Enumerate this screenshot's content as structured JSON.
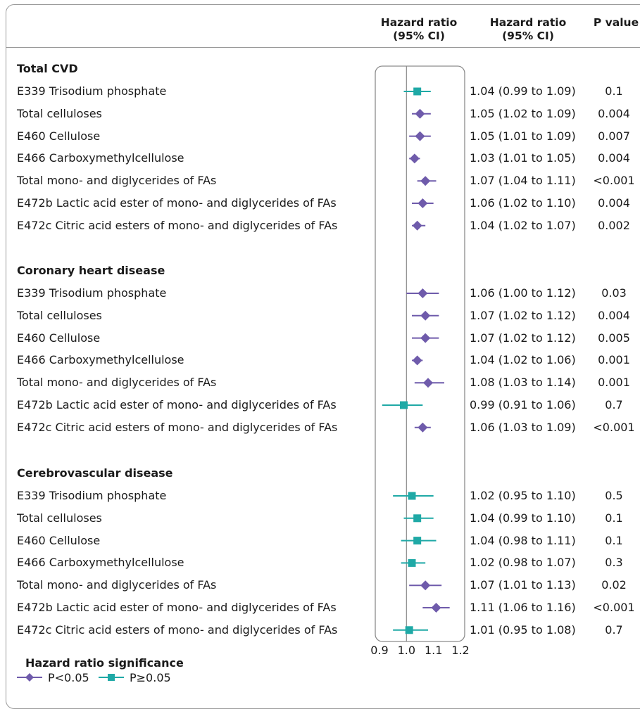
{
  "headers": {
    "plot": [
      "Hazard ratio",
      "(95% CI)"
    ],
    "hr": [
      "Hazard ratio",
      "(95% CI)"
    ],
    "p": "P value"
  },
  "colors": {
    "significant": "#6f5bab",
    "nonsignificant": "#1fa9a6",
    "axis": "#8c8c8c"
  },
  "sections": [
    {
      "title": "Total CVD",
      "rows": [
        {
          "label": "E339 Trisodium phosphate",
          "hr_text": "1.04 (0.99 to 1.09)",
          "p": "0.1"
        },
        {
          "label": "Total celluloses",
          "hr_text": "1.05 (1.02 to 1.09)",
          "p": "0.004"
        },
        {
          "label": "E460 Cellulose",
          "hr_text": "1.05 (1.01 to 1.09)",
          "p": "0.007"
        },
        {
          "label": "E466 Carboxymethylcellulose",
          "hr_text": "1.03 (1.01 to 1.05)",
          "p": "0.004"
        },
        {
          "label": "Total mono- and diglycerides of FAs",
          "hr_text": "1.07 (1.04 to 1.11)",
          "p": "<0.001"
        },
        {
          "label": "E472b Lactic acid ester of mono- and diglycerides of FAs",
          "hr_text": "1.06 (1.02 to 1.10)",
          "p": "0.004"
        },
        {
          "label": "E472c Citric acid esters of mono- and diglycerides of FAs",
          "hr_text": "1.04 (1.02 to 1.07)",
          "p": "0.002"
        }
      ]
    },
    {
      "title": "Coronary heart disease",
      "rows": [
        {
          "label": "E339 Trisodium phosphate",
          "hr_text": "1.06 (1.00 to 1.12)",
          "p": "0.03"
        },
        {
          "label": "Total celluloses",
          "hr_text": "1.07 (1.02 to 1.12)",
          "p": "0.004"
        },
        {
          "label": "E460 Cellulose",
          "hr_text": "1.07 (1.02 to 1.12)",
          "p": "0.005"
        },
        {
          "label": "E466 Carboxymethylcellulose",
          "hr_text": "1.04 (1.02 to 1.06)",
          "p": "0.001"
        },
        {
          "label": "Total mono- and diglycerides of FAs",
          "hr_text": "1.08 (1.03 to 1.14)",
          "p": "0.001"
        },
        {
          "label": "E472b Lactic acid ester of mono- and diglycerides of FAs",
          "hr_text": "0.99 (0.91 to 1.06)",
          "p": "0.7"
        },
        {
          "label": "E472c Citric acid esters of mono- and diglycerides of FAs",
          "hr_text": "1.06 (1.03 to 1.09)",
          "p": "<0.001"
        }
      ]
    },
    {
      "title": "Cerebrovascular disease",
      "rows": [
        {
          "label": "E339 Trisodium phosphate",
          "hr_text": "1.02 (0.95 to 1.10)",
          "p": "0.5"
        },
        {
          "label": "Total celluloses",
          "hr_text": "1.04 (0.99 to 1.10)",
          "p": "0.1"
        },
        {
          "label": "E460 Cellulose",
          "hr_text": "1.04 (0.98 to 1.11)",
          "p": "0.1"
        },
        {
          "label": "E466 Carboxymethylcellulose",
          "hr_text": "1.02 (0.98 to 1.07)",
          "p": "0.3"
        },
        {
          "label": "Total mono- and diglycerides of FAs",
          "hr_text": "1.07 (1.01 to 1.13)",
          "p": "0.02"
        },
        {
          "label": "E472b Lactic acid ester of mono- and diglycerides of FAs",
          "hr_text": "1.11 (1.06 to 1.16)",
          "p": "<0.001"
        },
        {
          "label": "E472c Citric acid esters of mono- and diglycerides of FAs",
          "hr_text": "1.01 (0.95 to 1.08)",
          "p": "0.7"
        }
      ]
    }
  ],
  "legend": {
    "title": "Hazard ratio significance",
    "significant_label": "P<0.05",
    "nonsignificant_label": "P≥0.05"
  },
  "chart_data": {
    "type": "forest",
    "x_ticks": [
      "0.9",
      "1.0",
      "1.1",
      "1.2"
    ],
    "xlim": [
      0.9,
      1.2
    ],
    "reference_line": 1.0,
    "groups": [
      {
        "name": "Total CVD",
        "points": [
          {
            "hr": 1.04,
            "lo": 0.99,
            "hi": 1.09,
            "significant": false
          },
          {
            "hr": 1.05,
            "lo": 1.02,
            "hi": 1.09,
            "significant": true
          },
          {
            "hr": 1.05,
            "lo": 1.01,
            "hi": 1.09,
            "significant": true
          },
          {
            "hr": 1.03,
            "lo": 1.01,
            "hi": 1.05,
            "significant": true
          },
          {
            "hr": 1.07,
            "lo": 1.04,
            "hi": 1.11,
            "significant": true
          },
          {
            "hr": 1.06,
            "lo": 1.02,
            "hi": 1.1,
            "significant": true
          },
          {
            "hr": 1.04,
            "lo": 1.02,
            "hi": 1.07,
            "significant": true
          }
        ]
      },
      {
        "name": "Coronary heart disease",
        "points": [
          {
            "hr": 1.06,
            "lo": 1.0,
            "hi": 1.12,
            "significant": true
          },
          {
            "hr": 1.07,
            "lo": 1.02,
            "hi": 1.12,
            "significant": true
          },
          {
            "hr": 1.07,
            "lo": 1.02,
            "hi": 1.12,
            "significant": true
          },
          {
            "hr": 1.04,
            "lo": 1.02,
            "hi": 1.06,
            "significant": true
          },
          {
            "hr": 1.08,
            "lo": 1.03,
            "hi": 1.14,
            "significant": true
          },
          {
            "hr": 0.99,
            "lo": 0.91,
            "hi": 1.06,
            "significant": false
          },
          {
            "hr": 1.06,
            "lo": 1.03,
            "hi": 1.09,
            "significant": true
          }
        ]
      },
      {
        "name": "Cerebrovascular disease",
        "points": [
          {
            "hr": 1.02,
            "lo": 0.95,
            "hi": 1.1,
            "significant": false
          },
          {
            "hr": 1.04,
            "lo": 0.99,
            "hi": 1.1,
            "significant": false
          },
          {
            "hr": 1.04,
            "lo": 0.98,
            "hi": 1.11,
            "significant": false
          },
          {
            "hr": 1.02,
            "lo": 0.98,
            "hi": 1.07,
            "significant": false
          },
          {
            "hr": 1.07,
            "lo": 1.01,
            "hi": 1.13,
            "significant": true
          },
          {
            "hr": 1.11,
            "lo": 1.06,
            "hi": 1.16,
            "significant": true
          },
          {
            "hr": 1.01,
            "lo": 0.95,
            "hi": 1.08,
            "significant": false
          }
        ]
      }
    ]
  }
}
